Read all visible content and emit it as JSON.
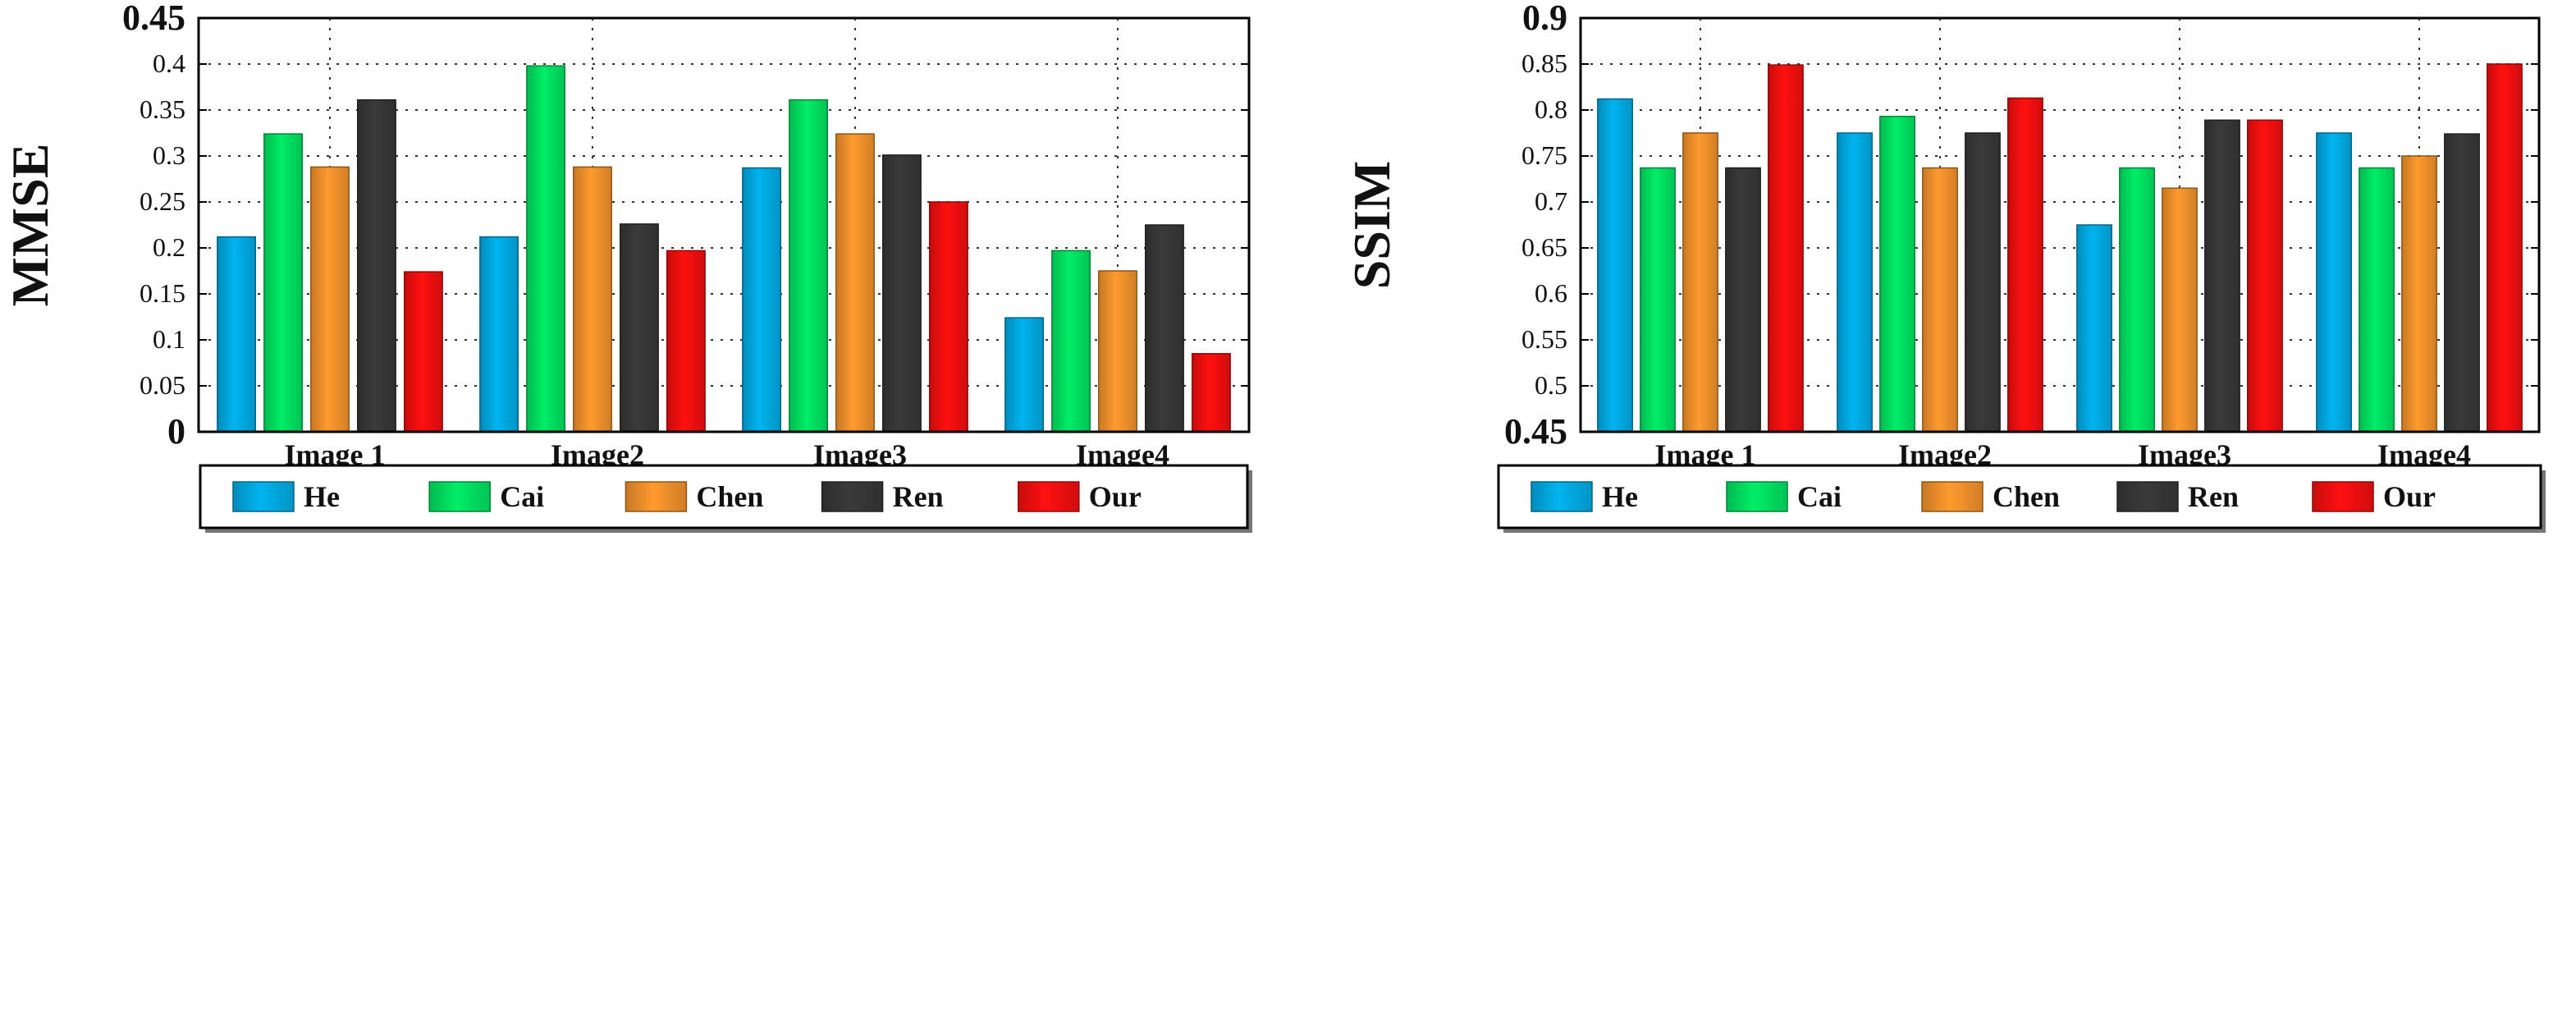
{
  "series_styles": [
    {
      "name": "He",
      "color": "#00b4f0"
    },
    {
      "name": "Cai",
      "color": "#00ee66"
    },
    {
      "name": "Chen",
      "color": "#ff9a2e"
    },
    {
      "name": "Ren",
      "color": "#3a3a3a"
    },
    {
      "name": "Our",
      "color": "#ff1010"
    }
  ],
  "chart_data": [
    {
      "type": "bar",
      "title": "",
      "xlabel": "",
      "ylabel": "MMSE",
      "ylim": [
        0,
        0.45
      ],
      "yticks": [
        0,
        0.05,
        0.1,
        0.15,
        0.2,
        0.25,
        0.3,
        0.35,
        0.4,
        0.45
      ],
      "ytick_labels": [
        "0",
        "0.05",
        "0.1",
        "0.15",
        "0.2",
        "0.25",
        "0.3",
        "0.35",
        "0.4",
        "0.45"
      ],
      "grid": true,
      "legend_position": "bottom",
      "categories": [
        "Image 1",
        "Image2",
        "Image3",
        "Image4"
      ],
      "series": [
        {
          "name": "He",
          "values": [
            0.212,
            0.212,
            0.287,
            0.124
          ]
        },
        {
          "name": "Cai",
          "values": [
            0.324,
            0.398,
            0.361,
            0.197
          ]
        },
        {
          "name": "Chen",
          "values": [
            0.288,
            0.288,
            0.324,
            0.175
          ]
        },
        {
          "name": "Ren",
          "values": [
            0.361,
            0.226,
            0.301,
            0.225
          ]
        },
        {
          "name": "Our",
          "values": [
            0.174,
            0.197,
            0.25,
            0.085
          ]
        }
      ]
    },
    {
      "type": "bar",
      "title": "",
      "xlabel": "",
      "ylabel": "SSIM",
      "ylim": [
        0.45,
        0.9
      ],
      "yticks": [
        0.45,
        0.5,
        0.55,
        0.6,
        0.65,
        0.7,
        0.75,
        0.8,
        0.85,
        0.9
      ],
      "ytick_labels": [
        "0.45",
        "0.5",
        "0.55",
        "0.6",
        "0.65",
        "0.7",
        "0.75",
        "0.8",
        "0.85",
        "0.9"
      ],
      "grid": true,
      "legend_position": "bottom",
      "categories": [
        "Image 1",
        "Image2",
        "Image3",
        "Image4"
      ],
      "series": [
        {
          "name": "He",
          "values": [
            0.812,
            0.775,
            0.675,
            0.775
          ]
        },
        {
          "name": "Cai",
          "values": [
            0.737,
            0.793,
            0.737,
            0.737
          ]
        },
        {
          "name": "Chen",
          "values": [
            0.775,
            0.737,
            0.715,
            0.75
          ]
        },
        {
          "name": "Ren",
          "values": [
            0.737,
            0.775,
            0.789,
            0.774
          ]
        },
        {
          "name": "Our",
          "values": [
            0.849,
            0.813,
            0.789,
            0.85
          ]
        }
      ]
    }
  ]
}
